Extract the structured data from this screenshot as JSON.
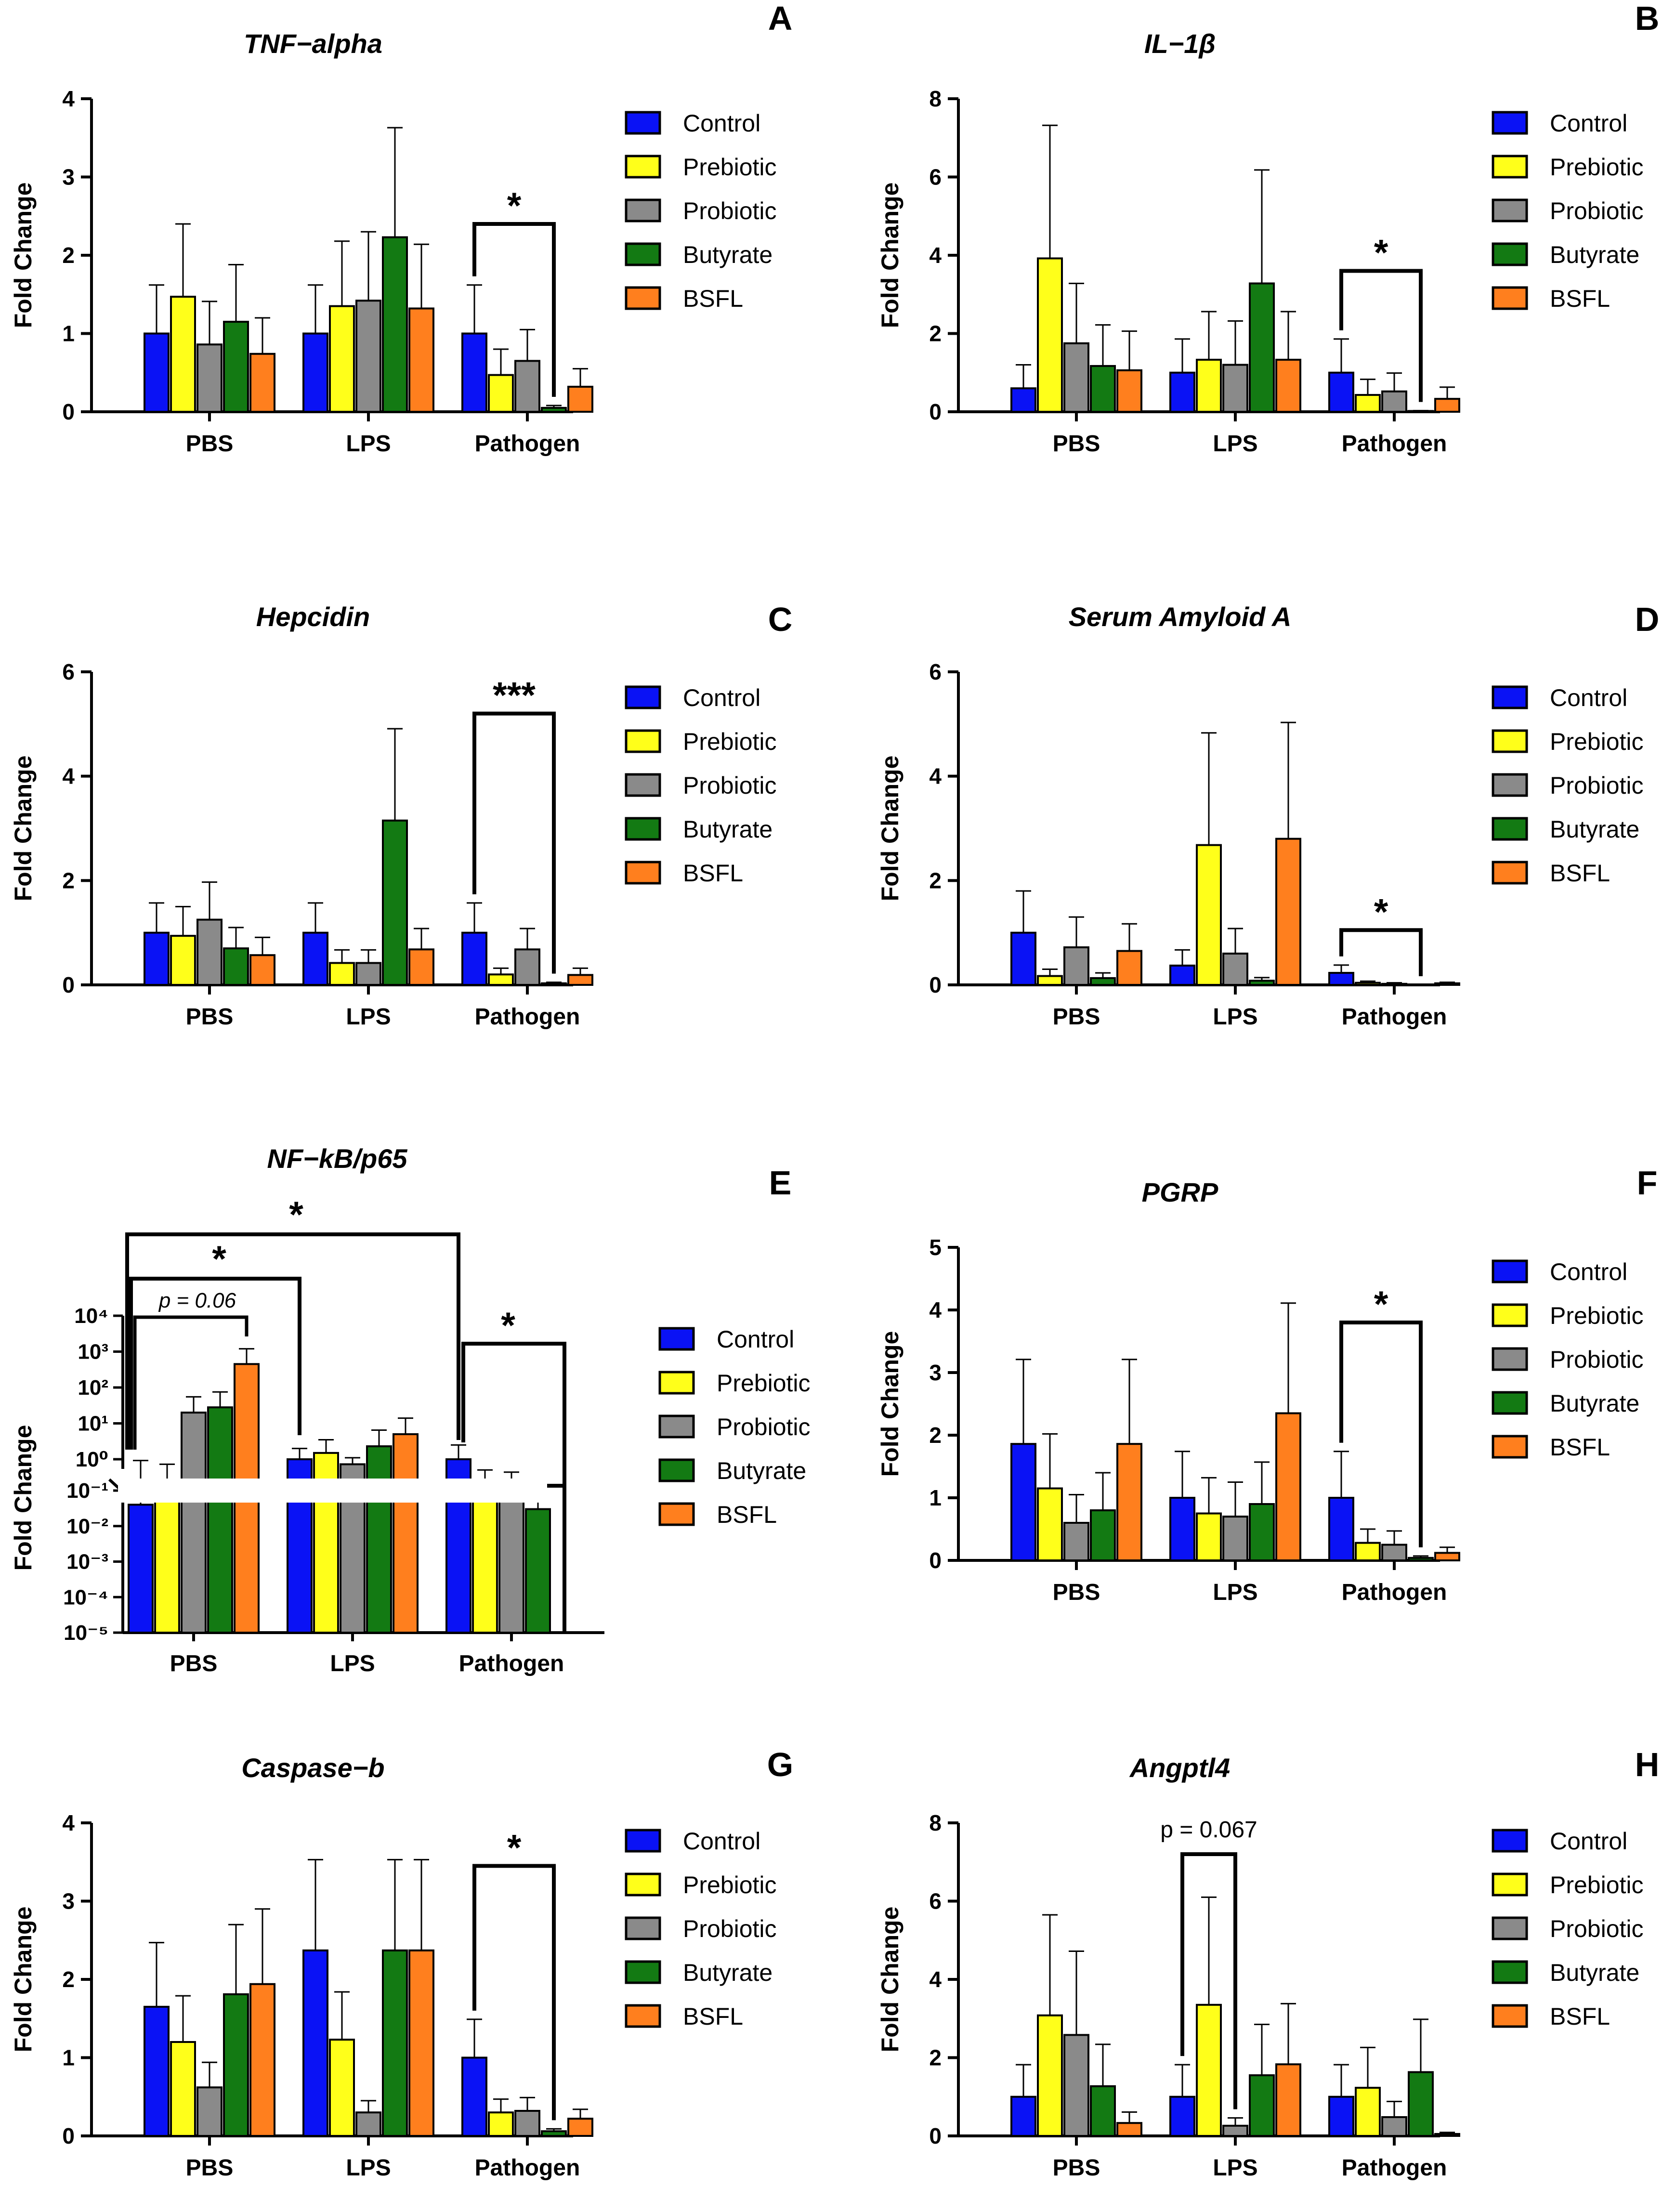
{
  "groups": [
    "PBS",
    "LPS",
    "Pathogen"
  ],
  "ylabel": "Fold Change",
  "legend": [
    {
      "label": "Control",
      "color": "#0a12f5"
    },
    {
      "label": "Prebiotic",
      "color": "#ffff1a"
    },
    {
      "label": "Probiotic",
      "color": "#8a8a8a"
    },
    {
      "label": "Butyrate",
      "color": "#137a13"
    },
    {
      "label": "BSFL",
      "color": "#ff7f1e"
    }
  ],
  "chart_data": [
    {
      "id": "A",
      "title": "TNF−alpha",
      "type": "bar",
      "scale": "linear",
      "ylim": [
        0,
        4
      ],
      "yticks": [
        0,
        1,
        2,
        3,
        4
      ],
      "categories": [
        "PBS",
        "LPS",
        "Pathogen"
      ],
      "series": [
        {
          "name": "Control",
          "values": [
            1.0,
            1.0,
            1.0
          ],
          "errors": [
            0.62,
            0.62,
            0.62
          ]
        },
        {
          "name": "Prebiotic",
          "values": [
            1.47,
            1.35,
            0.47
          ],
          "errors": [
            0.93,
            0.83,
            0.33
          ]
        },
        {
          "name": "Probiotic",
          "values": [
            0.86,
            1.42,
            0.65
          ],
          "errors": [
            0.55,
            0.88,
            0.4
          ]
        },
        {
          "name": "Butyrate",
          "values": [
            1.15,
            2.23,
            0.05
          ],
          "errors": [
            0.73,
            1.4,
            0.03
          ]
        },
        {
          "name": "BSFL",
          "values": [
            0.74,
            1.32,
            0.32
          ],
          "errors": [
            0.46,
            0.82,
            0.23
          ]
        }
      ],
      "annotations": [
        {
          "group": 2,
          "from": 0,
          "to": 3,
          "text": "*",
          "level": 2.4
        }
      ]
    },
    {
      "id": "B",
      "title": "IL−1β",
      "type": "bar",
      "scale": "linear",
      "ylim": [
        0,
        8
      ],
      "yticks": [
        0,
        2,
        4,
        6,
        8
      ],
      "categories": [
        "PBS",
        "LPS",
        "Pathogen"
      ],
      "series": [
        {
          "name": "Control",
          "values": [
            0.6,
            1.0,
            1.0
          ],
          "errors": [
            0.6,
            0.86,
            0.86
          ]
        },
        {
          "name": "Prebiotic",
          "values": [
            3.92,
            1.33,
            0.43
          ],
          "errors": [
            3.4,
            1.23,
            0.4
          ]
        },
        {
          "name": "Probiotic",
          "values": [
            1.75,
            1.2,
            0.52
          ],
          "errors": [
            1.53,
            1.12,
            0.47
          ]
        },
        {
          "name": "Butyrate",
          "values": [
            1.17,
            3.28,
            0.02
          ],
          "errors": [
            1.05,
            2.9,
            0.01
          ]
        },
        {
          "name": "BSFL",
          "values": [
            1.06,
            1.33,
            0.33
          ],
          "errors": [
            1.0,
            1.23,
            0.3
          ]
        }
      ],
      "annotations": [
        {
          "group": 2,
          "from": 0,
          "to": 3,
          "text": "*",
          "level": 3.6
        }
      ]
    },
    {
      "id": "C",
      "title": "Hepcidin",
      "type": "bar",
      "scale": "linear",
      "ylim": [
        0,
        6
      ],
      "yticks": [
        0,
        2,
        4,
        6
      ],
      "categories": [
        "PBS",
        "LPS",
        "Pathogen"
      ],
      "series": [
        {
          "name": "Control",
          "values": [
            1.0,
            1.0,
            1.0
          ],
          "errors": [
            0.57,
            0.57,
            0.57
          ]
        },
        {
          "name": "Prebiotic",
          "values": [
            0.94,
            0.42,
            0.2
          ],
          "errors": [
            0.56,
            0.25,
            0.12
          ]
        },
        {
          "name": "Probiotic",
          "values": [
            1.25,
            0.42,
            0.68
          ],
          "errors": [
            0.72,
            0.25,
            0.4
          ]
        },
        {
          "name": "Butyrate",
          "values": [
            0.7,
            3.15,
            0.03
          ],
          "errors": [
            0.4,
            1.76,
            0.02
          ]
        },
        {
          "name": "BSFL",
          "values": [
            0.57,
            0.68,
            0.19
          ],
          "errors": [
            0.34,
            0.4,
            0.13
          ]
        }
      ],
      "annotations": [
        {
          "group": 2,
          "from": 0,
          "to": 3,
          "text": "***",
          "level": 5.2
        }
      ]
    },
    {
      "id": "D",
      "title": "Serum Amyloid A",
      "type": "bar",
      "scale": "linear",
      "ylim": [
        0,
        6
      ],
      "yticks": [
        0,
        2,
        4,
        6
      ],
      "categories": [
        "PBS",
        "LPS",
        "Pathogen"
      ],
      "series": [
        {
          "name": "Control",
          "values": [
            1.0,
            0.37,
            0.23
          ],
          "errors": [
            0.8,
            0.3,
            0.15
          ]
        },
        {
          "name": "Prebiotic",
          "values": [
            0.17,
            2.68,
            0.04
          ],
          "errors": [
            0.13,
            2.15,
            0.03
          ]
        },
        {
          "name": "Probiotic",
          "values": [
            0.72,
            0.6,
            0.02
          ],
          "errors": [
            0.58,
            0.48,
            0.02
          ]
        },
        {
          "name": "Butyrate",
          "values": [
            0.13,
            0.08,
            0.0
          ],
          "errors": [
            0.1,
            0.06,
            0.0
          ]
        },
        {
          "name": "BSFL",
          "values": [
            0.65,
            2.8,
            0.03
          ],
          "errors": [
            0.52,
            2.23,
            0.02
          ]
        }
      ],
      "annotations": [
        {
          "group": 2,
          "from": 0,
          "to": 3,
          "text": "*",
          "level": 1.05
        }
      ]
    },
    {
      "id": "E",
      "title": "NF−kB/p65",
      "type": "bar",
      "scale": "log-broken",
      "ylim": [
        1e-05,
        10000.0
      ],
      "yticks_upper": [
        "10⁰",
        "10¹",
        "10²",
        "10³",
        "10⁴"
      ],
      "yticks_lower": [
        "10⁻⁵",
        "10⁻⁴",
        "10⁻³",
        "10⁻²",
        "10⁻¹"
      ],
      "categories": [
        "PBS",
        "LPS",
        "Pathogen"
      ],
      "series": [
        {
          "name": "Control",
          "values": [
            0.04,
            1.0,
            1.0
          ],
          "errors_hi": [
            0.7,
            2.0,
            2.5
          ]
        },
        {
          "name": "Prebiotic",
          "values": [
            0.2,
            1.5,
            0.15
          ],
          "errors_hi": [
            0.55,
            3.5,
            0.38
          ]
        },
        {
          "name": "Probiotic",
          "values": [
            20,
            0.55,
            0.12
          ],
          "errors_hi": [
            55,
            1.1,
            0.33
          ]
        },
        {
          "name": "Butyrate",
          "values": [
            28,
            2.3,
            0.03
          ],
          "errors_hi": [
            75,
            6.5,
            0.075
          ]
        },
        {
          "name": "BSFL",
          "values": [
            450,
            5.0,
            null
          ],
          "errors_hi": [
            1200,
            14,
            null
          ]
        }
      ],
      "annotations": [
        {
          "text": "p = 0.06",
          "from_group": 0,
          "from_bar": 0,
          "to_group": 0,
          "to_bar": 4
        },
        {
          "text": "*",
          "from_group": 0,
          "from_bar": 0,
          "to_group": 1,
          "to_bar": 0
        },
        {
          "text": "*",
          "from_group": 0,
          "from_bar": 0,
          "to_group": 2,
          "to_bar": 0
        },
        {
          "text": "*",
          "from_group": 2,
          "from_bar": 0,
          "to_group": 2,
          "to_bar": 4
        }
      ]
    },
    {
      "id": "F",
      "title": "PGRP",
      "type": "bar",
      "scale": "linear",
      "ylim": [
        0,
        5
      ],
      "yticks": [
        0,
        1,
        2,
        3,
        4,
        5
      ],
      "categories": [
        "PBS",
        "LPS",
        "Pathogen"
      ],
      "series": [
        {
          "name": "Control",
          "values": [
            1.86,
            1.0,
            1.0
          ],
          "errors": [
            1.35,
            0.74,
            0.74
          ]
        },
        {
          "name": "Prebiotic",
          "values": [
            1.15,
            0.75,
            0.28
          ],
          "errors": [
            0.87,
            0.57,
            0.22
          ]
        },
        {
          "name": "Probiotic",
          "values": [
            0.6,
            0.7,
            0.25
          ],
          "errors": [
            0.45,
            0.55,
            0.22
          ]
        },
        {
          "name": "Butyrate",
          "values": [
            0.8,
            0.9,
            0.04
          ],
          "errors": [
            0.6,
            0.67,
            0.03
          ]
        },
        {
          "name": "BSFL",
          "values": [
            1.86,
            2.35,
            0.12
          ],
          "errors": [
            1.35,
            1.76,
            0.09
          ]
        }
      ],
      "annotations": [
        {
          "group": 2,
          "from": 0,
          "to": 3,
          "text": "*",
          "level": 3.8
        }
      ]
    },
    {
      "id": "G",
      "title": "Caspase−b",
      "type": "bar",
      "scale": "linear",
      "ylim": [
        0,
        4
      ],
      "yticks": [
        0,
        1,
        2,
        3,
        4
      ],
      "categories": [
        "PBS",
        "LPS",
        "Pathogen"
      ],
      "series": [
        {
          "name": "Control",
          "values": [
            1.65,
            2.37,
            1.0
          ],
          "errors": [
            0.82,
            1.16,
            0.49
          ]
        },
        {
          "name": "Prebiotic",
          "values": [
            1.2,
            1.23,
            0.3
          ],
          "errors": [
            0.59,
            0.61,
            0.17
          ]
        },
        {
          "name": "Probiotic",
          "values": [
            0.62,
            0.3,
            0.32
          ],
          "errors": [
            0.32,
            0.15,
            0.17
          ]
        },
        {
          "name": "Butyrate",
          "values": [
            1.81,
            2.37,
            0.06
          ],
          "errors": [
            0.89,
            1.16,
            0.03
          ]
        },
        {
          "name": "BSFL",
          "values": [
            1.94,
            2.37,
            0.22
          ],
          "errors": [
            0.96,
            1.16,
            0.12
          ]
        }
      ],
      "annotations": [
        {
          "group": 2,
          "from": 0,
          "to": 3,
          "text": "*",
          "level": 3.45
        }
      ]
    },
    {
      "id": "H",
      "title": "Angptl4",
      "type": "bar",
      "scale": "linear",
      "ylim": [
        0,
        8
      ],
      "yticks": [
        0,
        2,
        4,
        6,
        8
      ],
      "categories": [
        "PBS",
        "LPS",
        "Pathogen"
      ],
      "series": [
        {
          "name": "Control",
          "values": [
            1.0,
            1.0,
            1.0
          ],
          "errors": [
            0.82,
            0.82,
            0.82
          ]
        },
        {
          "name": "Prebiotic",
          "values": [
            3.08,
            3.35,
            1.23
          ],
          "errors": [
            2.57,
            2.75,
            1.03
          ]
        },
        {
          "name": "Probiotic",
          "values": [
            2.58,
            0.26,
            0.48
          ],
          "errors": [
            2.14,
            0.2,
            0.4
          ]
        },
        {
          "name": "Butyrate",
          "values": [
            1.27,
            1.55,
            1.63
          ],
          "errors": [
            1.07,
            1.3,
            1.35
          ]
        },
        {
          "name": "BSFL",
          "values": [
            0.33,
            1.83,
            0.05
          ],
          "errors": [
            0.28,
            1.55,
            0.04
          ]
        }
      ],
      "annotations": [
        {
          "group": 1,
          "from": 0,
          "to": 2,
          "text": "p = 0.067",
          "level": 7.2
        }
      ]
    }
  ]
}
